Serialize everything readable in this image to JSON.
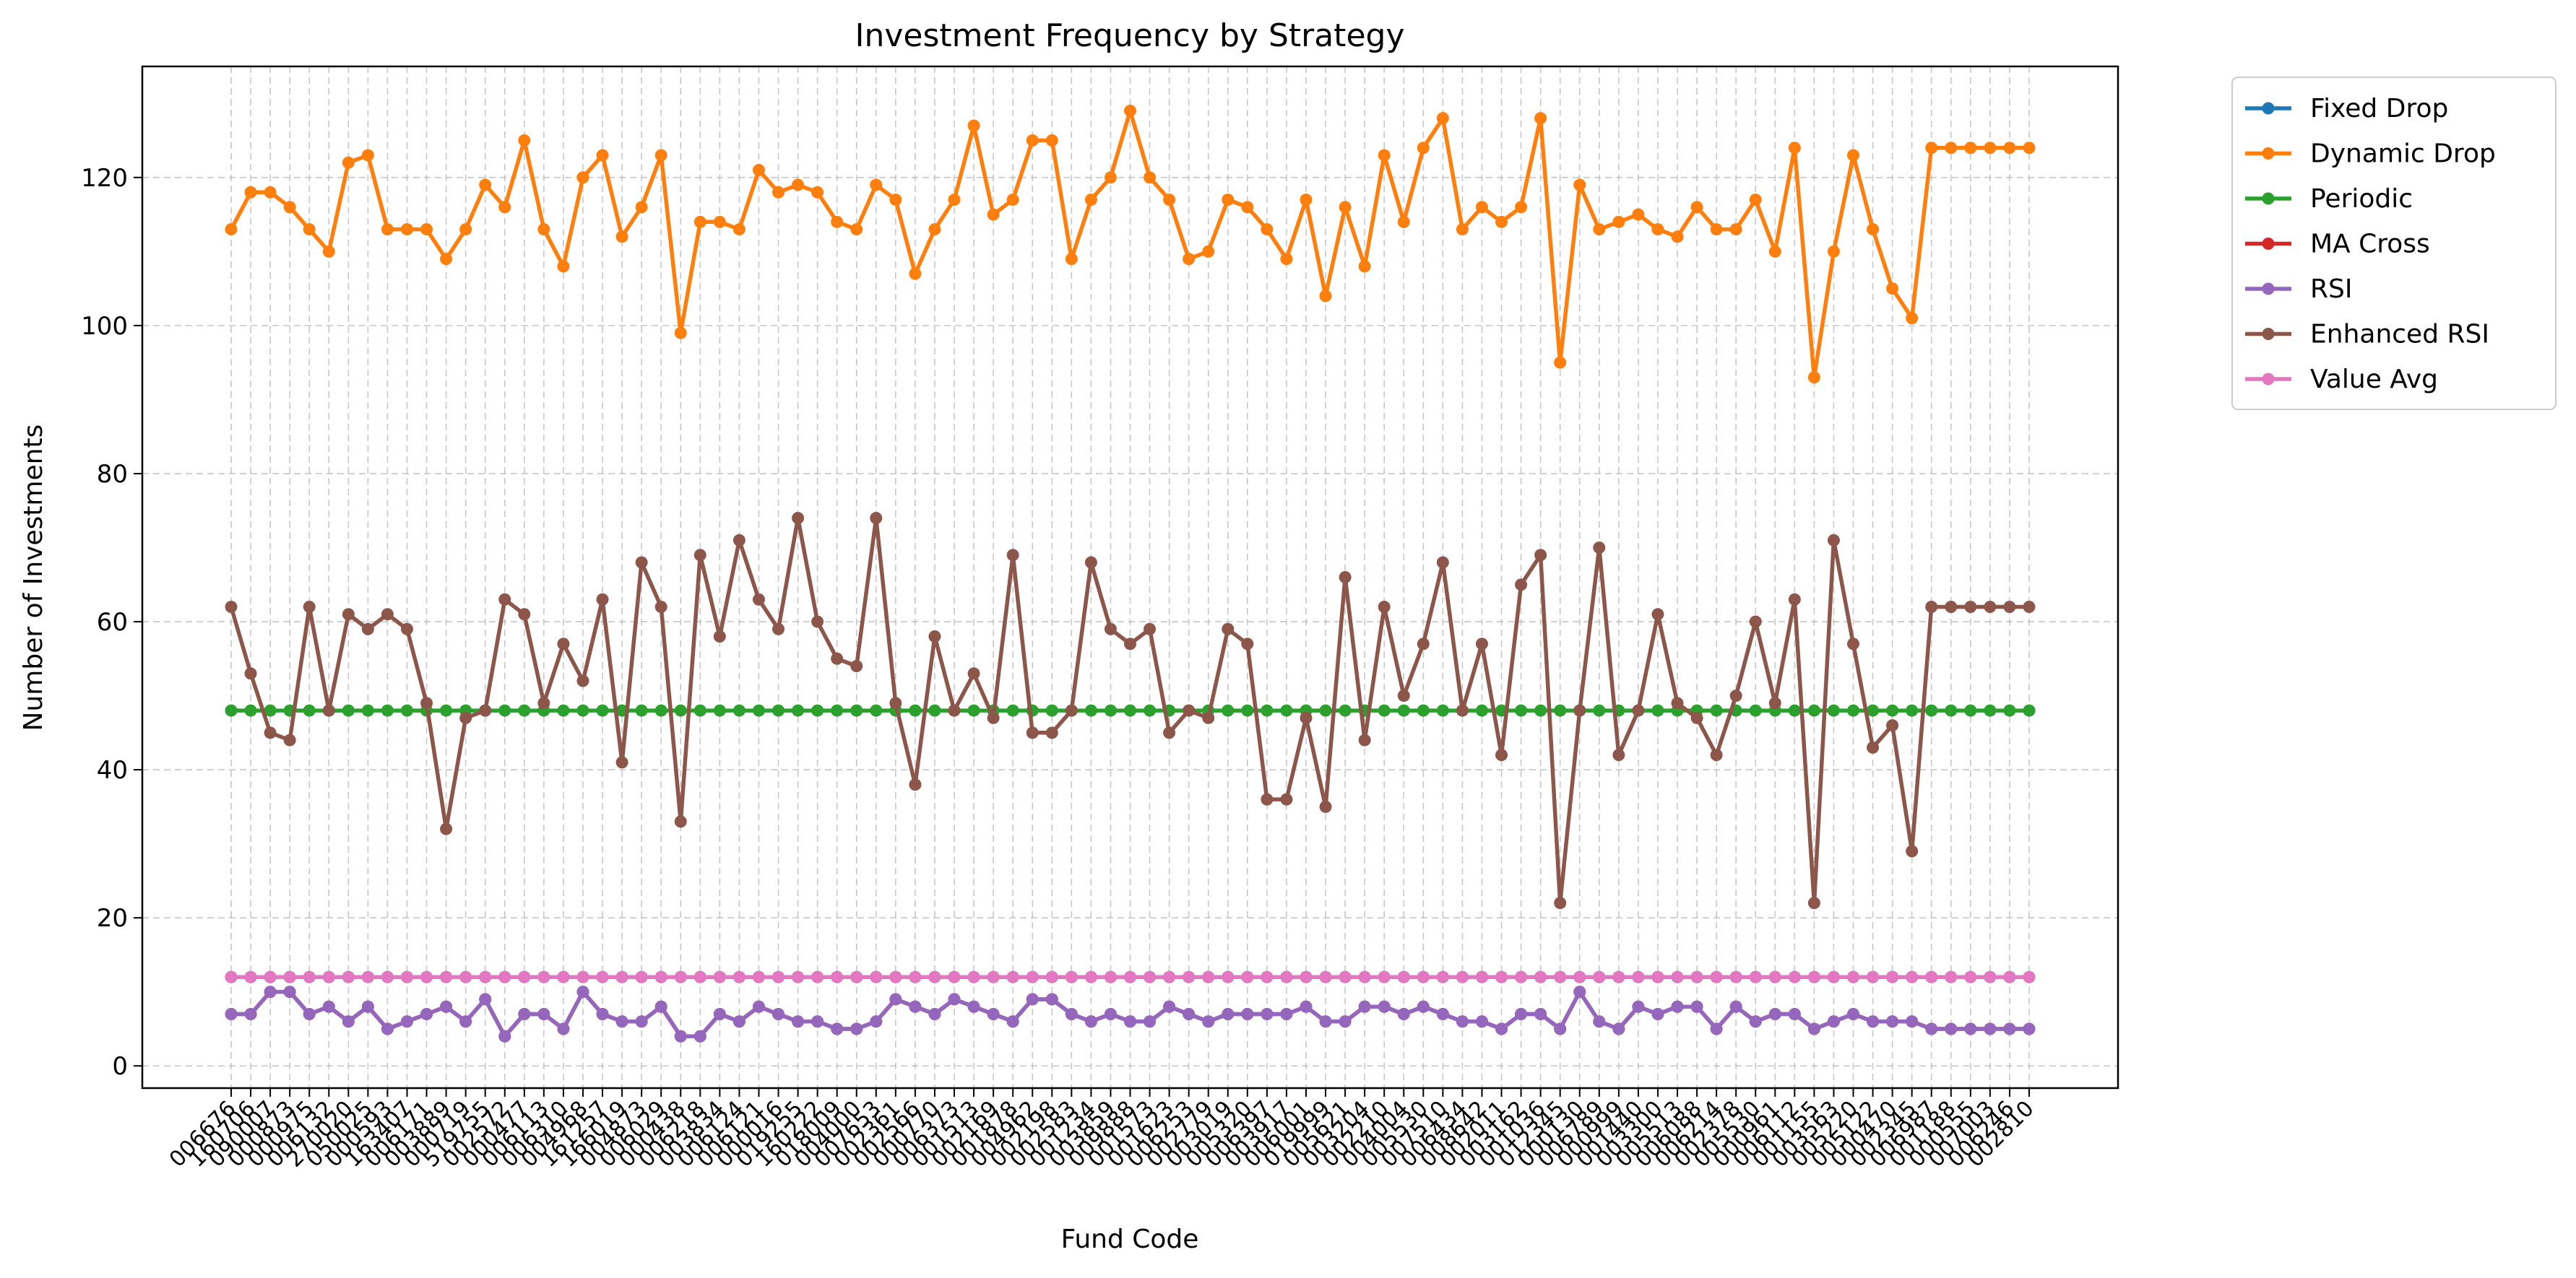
{
  "chart_data": {
    "type": "line",
    "title": "Investment Frequency by Strategy",
    "xlabel": "Fund Code",
    "ylabel": "Number of Investments",
    "ylim": [
      -3,
      135
    ],
    "yticks": [
      0,
      20,
      40,
      60,
      80,
      100,
      120
    ],
    "grid": true,
    "legend_placement": "outside-top-right",
    "categories": [
      "006676",
      "160706",
      "090007",
      "000873",
      "000975",
      "006132",
      "270020",
      "050025",
      "000593",
      "163407",
      "006171",
      "003889",
      "000719",
      "519755",
      "002572",
      "000477",
      "006113",
      "006310",
      "004968",
      "161257",
      "166019",
      "004873",
      "006029",
      "000438",
      "006218",
      "003834",
      "006124",
      "006121",
      "000016",
      "019255",
      "160222",
      "018009",
      "004000",
      "007653",
      "002361",
      "002566",
      "000770",
      "006373",
      "001513",
      "002169",
      "001878",
      "004962",
      "002198",
      "002583",
      "001234",
      "003859",
      "009888",
      "001573",
      "001623",
      "006253",
      "002779",
      "003019",
      "005320",
      "006397",
      "003917",
      "006001",
      "019999",
      "005621",
      "003204",
      "002210",
      "004004",
      "005530",
      "007510",
      "006434",
      "008642",
      "002011",
      "003162",
      "001036",
      "012345",
      "000130",
      "006789",
      "000999",
      "001440",
      "003300",
      "005513",
      "006088",
      "006214",
      "002378",
      "005530",
      "000961",
      "006112",
      "001155",
      "003563",
      "005220",
      "005122",
      "000470",
      "002345",
      "006987",
      "001188",
      "000555",
      "007003",
      "006246",
      "002810"
    ],
    "series": [
      {
        "name": "Fixed Drop",
        "color": "#1f77b4",
        "values": [
          12,
          12,
          12,
          12,
          12,
          12,
          12,
          12,
          12,
          12,
          12,
          12,
          12,
          12,
          12,
          12,
          12,
          12,
          12,
          12,
          12,
          12,
          12,
          12,
          12,
          12,
          12,
          12,
          12,
          12,
          12,
          12,
          12,
          12,
          12,
          12,
          12,
          12,
          12,
          12,
          12,
          12,
          12,
          12,
          12,
          12,
          12,
          12,
          12,
          12,
          12,
          12,
          12,
          12,
          12,
          12,
          12,
          12,
          12,
          12,
          12,
          12,
          12,
          12,
          12,
          12,
          12,
          12,
          12,
          12,
          12,
          12,
          12,
          12,
          12,
          12,
          12,
          12,
          12,
          12,
          12,
          12,
          12,
          12,
          12,
          12,
          12,
          12,
          12,
          12,
          12,
          12,
          12
        ]
      },
      {
        "name": "Dynamic Drop",
        "color": "#ff7f0e",
        "values": [
          113,
          118,
          118,
          116,
          113,
          110,
          122,
          123,
          113,
          113,
          113,
          109,
          113,
          119,
          116,
          125,
          113,
          108,
          120,
          123,
          112,
          116,
          123,
          99,
          114,
          114,
          113,
          121,
          118,
          119,
          118,
          114,
          113,
          119,
          117,
          107,
          113,
          117,
          127,
          115,
          117,
          125,
          125,
          109,
          117,
          120,
          129,
          120,
          117,
          109,
          110,
          117,
          116,
          113,
          109,
          117,
          104,
          116,
          108,
          123,
          114,
          124,
          128,
          113,
          116,
          114,
          116,
          128,
          95,
          119,
          113,
          114,
          115,
          113,
          112,
          116,
          113,
          113,
          117,
          110,
          124,
          93,
          110,
          123,
          113,
          105,
          101,
          124,
          124,
          124,
          124,
          124,
          124
        ]
      },
      {
        "name": "Periodic",
        "color": "#2ca02c",
        "values": [
          48,
          48,
          48,
          48,
          48,
          48,
          48,
          48,
          48,
          48,
          48,
          48,
          48,
          48,
          48,
          48,
          48,
          48,
          48,
          48,
          48,
          48,
          48,
          48,
          48,
          48,
          48,
          48,
          48,
          48,
          48,
          48,
          48,
          48,
          48,
          48,
          48,
          48,
          48,
          48,
          48,
          48,
          48,
          48,
          48,
          48,
          48,
          48,
          48,
          48,
          48,
          48,
          48,
          48,
          48,
          48,
          48,
          48,
          48,
          48,
          48,
          48,
          48,
          48,
          48,
          48,
          48,
          48,
          48,
          48,
          48,
          48,
          48,
          48,
          48,
          48,
          48,
          48,
          48,
          48,
          48,
          48,
          48,
          48,
          48,
          48,
          48,
          48,
          48,
          48,
          48,
          48,
          48
        ]
      },
      {
        "name": "MA Cross",
        "color": "#d62728",
        "values": [
          7,
          7,
          10,
          10,
          7,
          8,
          6,
          8,
          5,
          6,
          7,
          8,
          6,
          9,
          4,
          7,
          7,
          5,
          10,
          7,
          6,
          6,
          8,
          4,
          4,
          7,
          6,
          8,
          7,
          6,
          6,
          5,
          5,
          6,
          9,
          8,
          7,
          9,
          8,
          7,
          6,
          9,
          9,
          7,
          6,
          7,
          6,
          6,
          8,
          7,
          6,
          7,
          7,
          7,
          7,
          8,
          6,
          6,
          8,
          8,
          7,
          8,
          7,
          6,
          6,
          5,
          7,
          7,
          5,
          10,
          6,
          5,
          8,
          7,
          8,
          8,
          5,
          8,
          6,
          7,
          7,
          5,
          6,
          7,
          6,
          6,
          6,
          5,
          5,
          5,
          5,
          5,
          5
        ]
      },
      {
        "name": "RSI",
        "color": "#9467bd",
        "values": [
          7,
          7,
          10,
          10,
          7,
          8,
          6,
          8,
          5,
          6,
          7,
          8,
          6,
          9,
          4,
          7,
          7,
          5,
          10,
          7,
          6,
          6,
          8,
          4,
          4,
          7,
          6,
          8,
          7,
          6,
          6,
          5,
          5,
          6,
          9,
          8,
          7,
          9,
          8,
          7,
          6,
          9,
          9,
          7,
          6,
          7,
          6,
          6,
          8,
          7,
          6,
          7,
          7,
          7,
          7,
          8,
          6,
          6,
          8,
          8,
          7,
          8,
          7,
          6,
          6,
          5,
          7,
          7,
          5,
          10,
          6,
          5,
          8,
          7,
          8,
          8,
          5,
          8,
          6,
          7,
          7,
          5,
          6,
          7,
          6,
          6,
          6,
          5,
          5,
          5,
          5,
          5,
          5
        ]
      },
      {
        "name": "Enhanced RSI",
        "color": "#8c564b",
        "values": [
          62,
          53,
          45,
          44,
          62,
          48,
          61,
          59,
          61,
          59,
          49,
          32,
          47,
          48,
          63,
          61,
          49,
          57,
          52,
          63,
          41,
          68,
          62,
          33,
          69,
          58,
          71,
          63,
          59,
          74,
          60,
          55,
          54,
          74,
          49,
          38,
          58,
          48,
          53,
          47,
          69,
          45,
          45,
          48,
          68,
          59,
          57,
          59,
          45,
          48,
          47,
          59,
          57,
          36,
          36,
          47,
          35,
          66,
          44,
          62,
          50,
          57,
          68,
          48,
          57,
          42,
          65,
          69,
          22,
          48,
          70,
          42,
          48,
          61,
          49,
          47,
          42,
          50,
          60,
          49,
          63,
          22,
          71,
          57,
          43,
          46,
          29,
          62,
          62,
          62,
          62,
          62,
          62
        ]
      },
      {
        "name": "Value Avg",
        "color": "#e377c2",
        "values": [
          12,
          12,
          12,
          12,
          12,
          12,
          12,
          12,
          12,
          12,
          12,
          12,
          12,
          12,
          12,
          12,
          12,
          12,
          12,
          12,
          12,
          12,
          12,
          12,
          12,
          12,
          12,
          12,
          12,
          12,
          12,
          12,
          12,
          12,
          12,
          12,
          12,
          12,
          12,
          12,
          12,
          12,
          12,
          12,
          12,
          12,
          12,
          12,
          12,
          12,
          12,
          12,
          12,
          12,
          12,
          12,
          12,
          12,
          12,
          12,
          12,
          12,
          12,
          12,
          12,
          12,
          12,
          12,
          12,
          12,
          12,
          12,
          12,
          12,
          12,
          12,
          12,
          12,
          12,
          12,
          12,
          12,
          12,
          12,
          12,
          12,
          12,
          12,
          12,
          12,
          12,
          12,
          12
        ]
      }
    ]
  }
}
